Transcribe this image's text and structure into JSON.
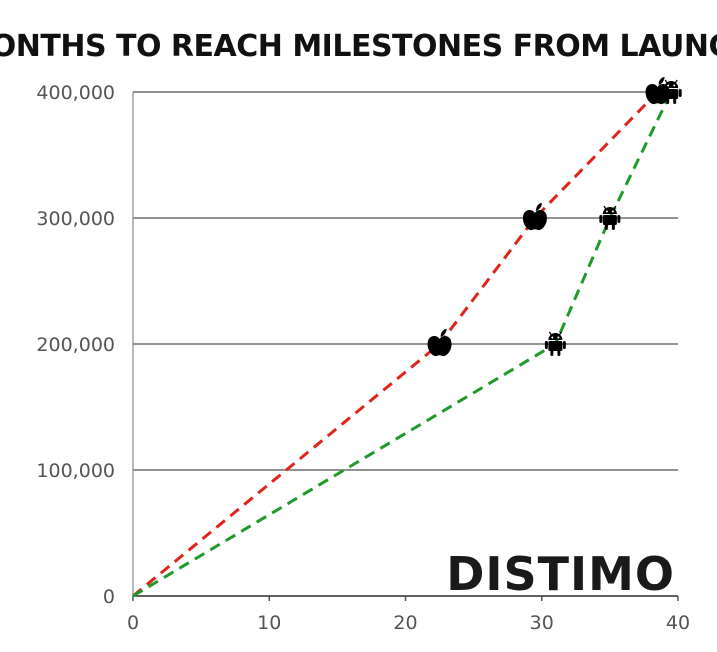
{
  "chart_data": {
    "type": "line",
    "title": "MONTHS TO REACH MILESTONES FROM LAUNCH",
    "xlabel": "",
    "ylabel": "",
    "xlim": [
      0,
      40
    ],
    "ylim": [
      0,
      400000
    ],
    "x_ticks": [
      0,
      10,
      20,
      30,
      40
    ],
    "x_tick_labels": [
      "0",
      "10",
      "20",
      "30",
      "40"
    ],
    "y_ticks": [
      0,
      100000,
      200000,
      300000,
      400000
    ],
    "y_tick_labels": [
      "0",
      "100,000",
      "200,000",
      "300,000",
      "400,000"
    ],
    "grid": "horizontal",
    "series": [
      {
        "color": "#e0241b",
        "marker": "apple-icon",
        "line_style": "dashed",
        "points": [
          {
            "x": 0,
            "y": 0
          },
          {
            "x": 22.5,
            "y": 200000
          },
          {
            "x": 29.5,
            "y": 300000
          },
          {
            "x": 38.5,
            "y": 400000
          }
        ]
      },
      {
        "color": "#1e9a2a",
        "marker": "android-icon",
        "line_style": "dashed",
        "points": [
          {
            "x": 0,
            "y": 0
          },
          {
            "x": 31,
            "y": 200000
          },
          {
            "x": 35,
            "y": 300000
          },
          {
            "x": 39.5,
            "y": 400000
          }
        ]
      }
    ],
    "watermark": "DISTIMO"
  }
}
